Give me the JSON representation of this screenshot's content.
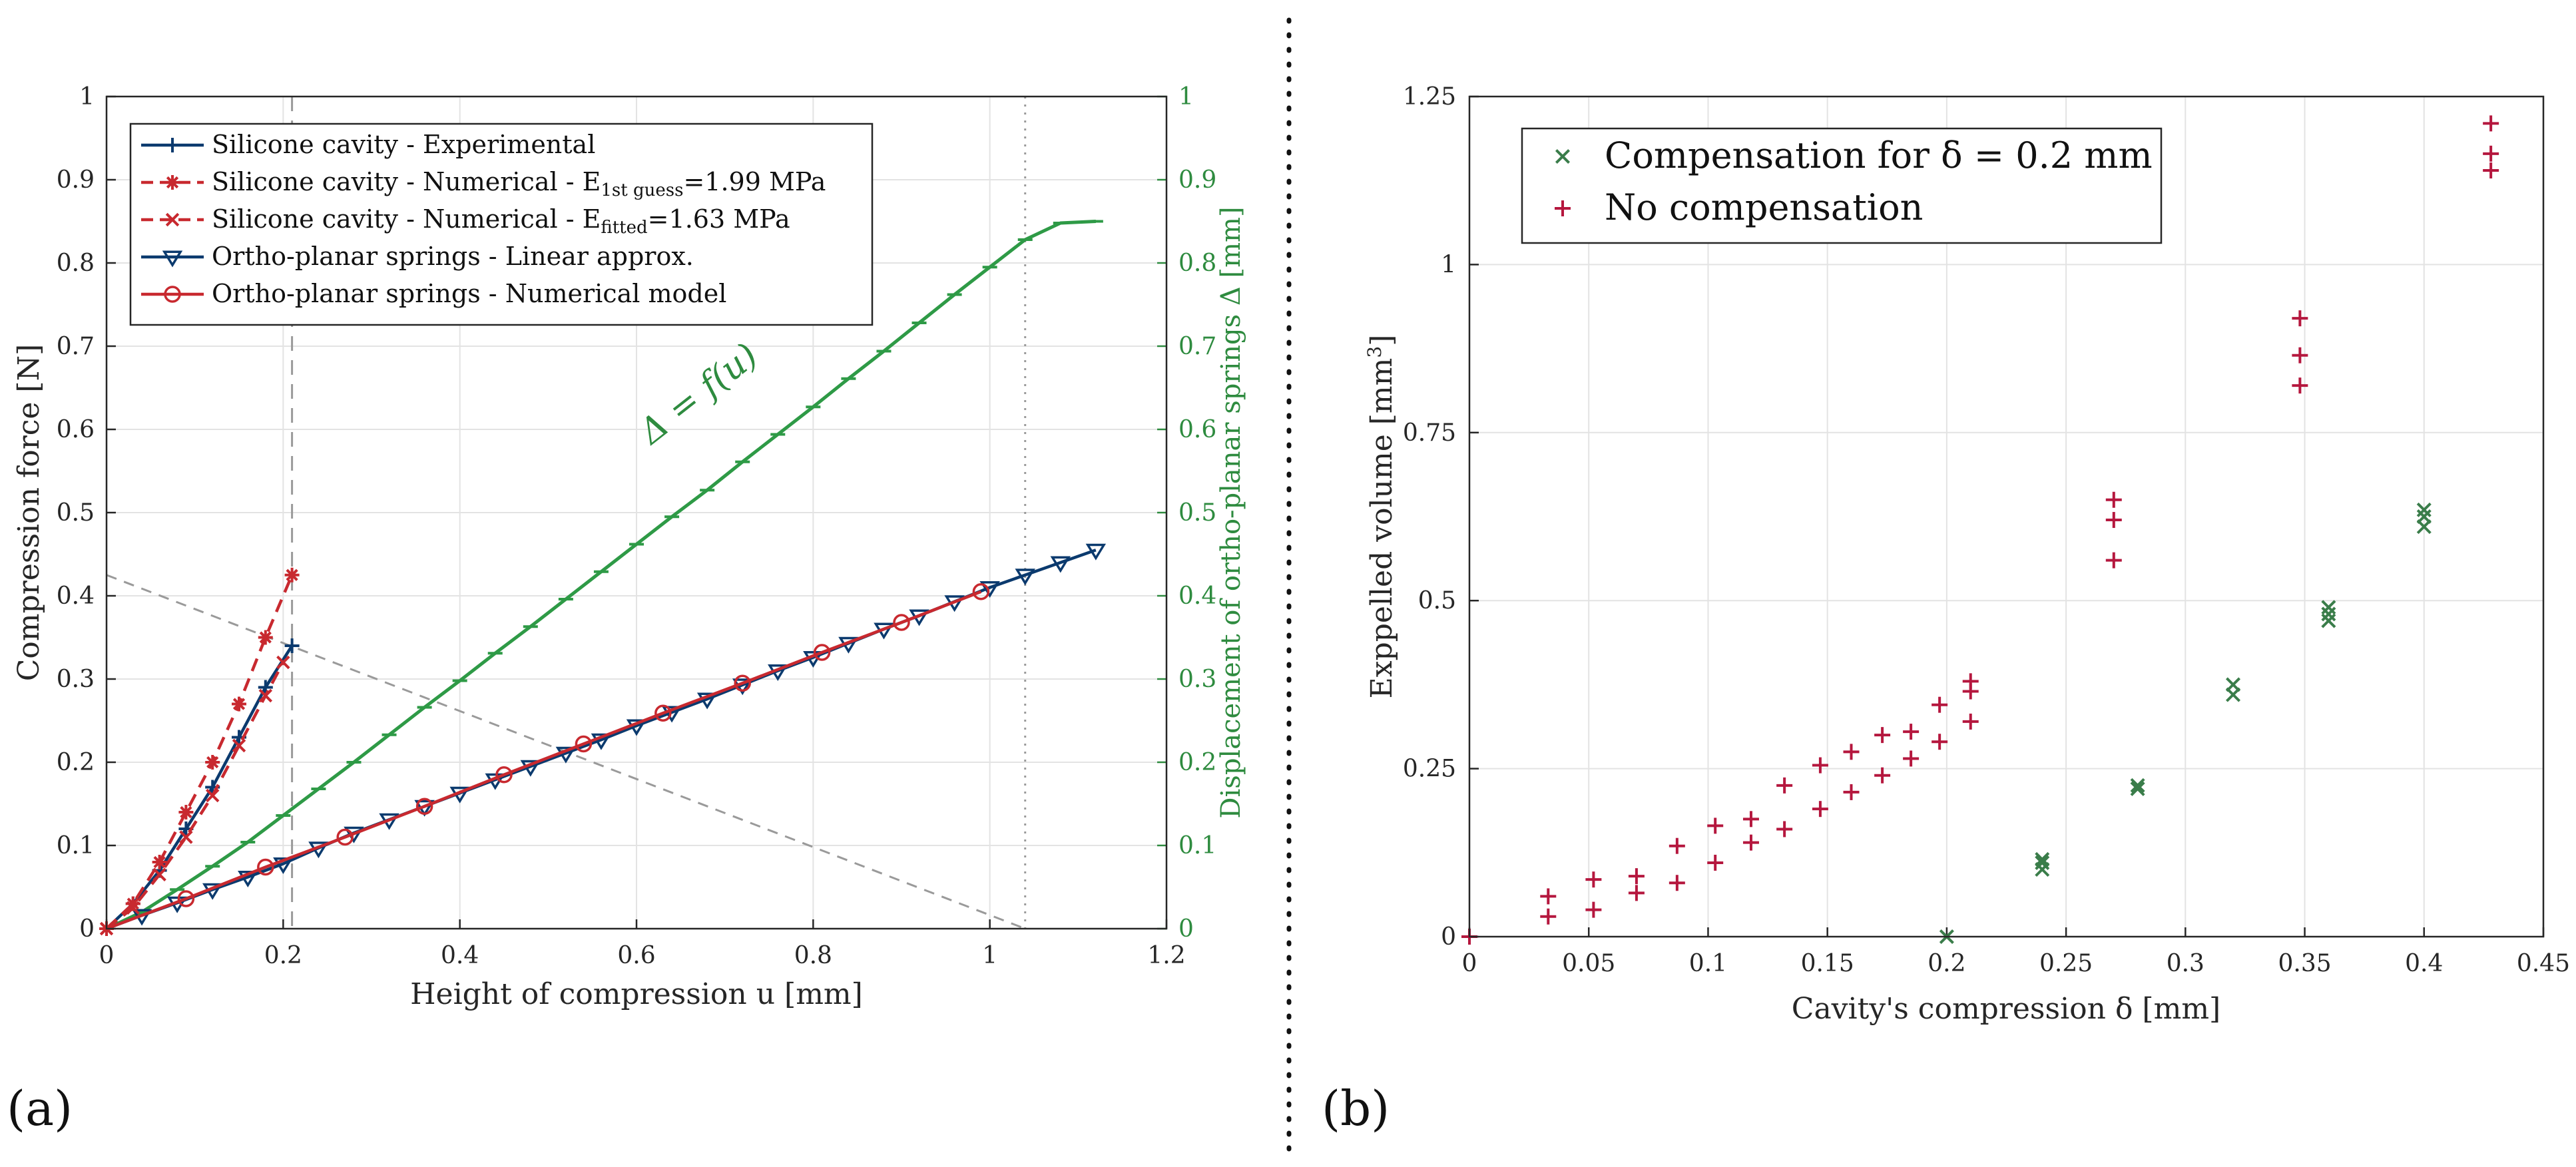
{
  "colors": {
    "blue": "#0b3a6e",
    "red": "#c8292f",
    "green": "#2e9a46",
    "crimson": "#b5173e",
    "darkgreen": "#3a7d4a"
  },
  "panel_labels": {
    "a": "(a)",
    "b": "(b)"
  },
  "chart_data": [
    {
      "type": "line",
      "panel": "a",
      "xlabel": "Height of compression u [mm]",
      "ylabel": "Compression force [N]",
      "y2label": "Displacement of ortho-planar springs Δ [mm]",
      "xlim": [
        0,
        1.2
      ],
      "ylim": [
        0,
        1
      ],
      "y2lim": [
        0,
        1
      ],
      "xticks": [
        "0",
        "0.2",
        "0.4",
        "0.6",
        "0.8",
        "1",
        "1.2"
      ],
      "yticks": [
        "0",
        "0.1",
        "0.2",
        "0.3",
        "0.4",
        "0.5",
        "0.6",
        "0.7",
        "0.8",
        "0.9",
        "1"
      ],
      "annotation": "Δ = f(u)",
      "reference_lines": {
        "vertical_dashed_x": 0.21,
        "vertical_dotted_x": 1.04,
        "diagonal_from": [
          0,
          0.425
        ],
        "diagonal_to": [
          1.04,
          0
        ]
      },
      "series": [
        {
          "name": "Silicone cavity - Experimental",
          "legend": "Silicone cavity - Experimental",
          "x": [
            0,
            0.03,
            0.06,
            0.09,
            0.12,
            0.15,
            0.18,
            0.21
          ],
          "y": [
            0,
            0.03,
            0.07,
            0.12,
            0.17,
            0.23,
            0.29,
            0.34
          ]
        },
        {
          "name": "Silicone cavity - Numerical - E1st guess=1.99 MPa",
          "legend": "Silicone cavity - Numerical - E",
          "legend_sub": "1st guess",
          "legend_tail": "=1.99 MPa",
          "x": [
            0,
            0.03,
            0.06,
            0.09,
            0.12,
            0.15,
            0.18,
            0.21
          ],
          "y": [
            0,
            0.03,
            0.08,
            0.14,
            0.2,
            0.27,
            0.35,
            0.425
          ]
        },
        {
          "name": "Silicone cavity - Numerical - Efitted=1.63 MPa",
          "legend": "Silicone cavity - Numerical - E",
          "legend_sub": "fitted",
          "legend_tail": "=1.63 MPa",
          "x": [
            0,
            0.03,
            0.06,
            0.09,
            0.12,
            0.15,
            0.18,
            0.2
          ],
          "y": [
            0,
            0.025,
            0.065,
            0.11,
            0.16,
            0.22,
            0.28,
            0.32
          ]
        },
        {
          "name": "Ortho-planar springs - Linear approx.",
          "legend": "Ortho-planar springs - Linear approx.",
          "x": [
            0,
            0.04,
            0.08,
            0.12,
            0.16,
            0.2,
            0.24,
            0.28,
            0.32,
            0.36,
            0.4,
            0.44,
            0.48,
            0.52,
            0.56,
            0.6,
            0.64,
            0.68,
            0.72,
            0.76,
            0.8,
            0.84,
            0.88,
            0.92,
            0.96,
            1.0,
            1.04,
            1.08,
            1.12
          ],
          "y": [
            0,
            0.016,
            0.031,
            0.047,
            0.062,
            0.078,
            0.097,
            0.115,
            0.131,
            0.147,
            0.163,
            0.179,
            0.195,
            0.211,
            0.227,
            0.244,
            0.26,
            0.276,
            0.293,
            0.31,
            0.326,
            0.343,
            0.36,
            0.376,
            0.393,
            0.41,
            0.425,
            0.44,
            0.455
          ]
        },
        {
          "name": "Ortho-planar springs - Numerical model",
          "legend": "Ortho-planar springs - Numerical model",
          "x": [
            0,
            0.09,
            0.18,
            0.27,
            0.36,
            0.45,
            0.54,
            0.63,
            0.72,
            0.81,
            0.9,
            0.99
          ],
          "y": [
            0,
            0.036,
            0.074,
            0.11,
            0.147,
            0.185,
            0.222,
            0.259,
            0.295,
            0.332,
            0.368,
            0.405
          ]
        },
        {
          "name": "Displacement Δ = f(u)",
          "axis": "right",
          "x": [
            0,
            0.04,
            0.08,
            0.12,
            0.16,
            0.2,
            0.24,
            0.28,
            0.32,
            0.36,
            0.4,
            0.44,
            0.48,
            0.52,
            0.56,
            0.6,
            0.64,
            0.68,
            0.72,
            0.76,
            0.8,
            0.84,
            0.88,
            0.92,
            0.96,
            1.0,
            1.04,
            1.08,
            1.12
          ],
          "y": [
            0,
            0.02,
            0.047,
            0.075,
            0.104,
            0.136,
            0.168,
            0.2,
            0.233,
            0.266,
            0.298,
            0.331,
            0.363,
            0.396,
            0.429,
            0.462,
            0.495,
            0.527,
            0.561,
            0.594,
            0.627,
            0.661,
            0.694,
            0.728,
            0.762,
            0.795,
            0.828,
            0.848,
            0.85
          ]
        }
      ]
    },
    {
      "type": "scatter",
      "panel": "b",
      "xlabel": "Cavity's compression δ [mm]",
      "ylabel": "Exppelled volume [mm",
      "ylabel_sup": "3",
      "ylabel_tail": "]",
      "xlim": [
        0,
        0.45
      ],
      "ylim": [
        0,
        1.25
      ],
      "xticks": [
        "0",
        "0.05",
        "0.1",
        "0.15",
        "0.2",
        "0.25",
        "0.3",
        "0.35",
        "0.4",
        "0.45"
      ],
      "yticks": [
        "0",
        "0.25",
        "0.5",
        "0.75",
        "1",
        "1.25"
      ],
      "series": [
        {
          "name": "Compensation for δ = 0.2 mm",
          "legend": "Compensation for δ = 0.2 mm",
          "marker": "x",
          "x": [
            0.2,
            0.24,
            0.24,
            0.24,
            0.28,
            0.28,
            0.32,
            0.32,
            0.36,
            0.36,
            0.36,
            0.4,
            0.4,
            0.4
          ],
          "y": [
            0,
            0.1,
            0.11,
            0.115,
            0.22,
            0.225,
            0.36,
            0.375,
            0.47,
            0.48,
            0.49,
            0.61,
            0.625,
            0.635
          ]
        },
        {
          "name": "No compensation",
          "legend": "No compensation",
          "marker": "+",
          "x": [
            0,
            0.033,
            0.033,
            0.052,
            0.052,
            0.07,
            0.07,
            0.087,
            0.087,
            0.103,
            0.103,
            0.118,
            0.118,
            0.132,
            0.132,
            0.147,
            0.147,
            0.16,
            0.16,
            0.173,
            0.173,
            0.185,
            0.185,
            0.197,
            0.197,
            0.21,
            0.21,
            0.21,
            0.27,
            0.27,
            0.27,
            0.348,
            0.348,
            0.348,
            0.428,
            0.428,
            0.428
          ],
          "y": [
            0,
            0.03,
            0.06,
            0.04,
            0.085,
            0.065,
            0.09,
            0.08,
            0.135,
            0.11,
            0.165,
            0.14,
            0.175,
            0.16,
            0.225,
            0.19,
            0.255,
            0.215,
            0.275,
            0.24,
            0.3,
            0.265,
            0.305,
            0.29,
            0.345,
            0.32,
            0.365,
            0.38,
            0.56,
            0.62,
            0.65,
            0.82,
            0.865,
            0.92,
            1.14,
            1.165,
            1.21
          ]
        }
      ]
    }
  ]
}
